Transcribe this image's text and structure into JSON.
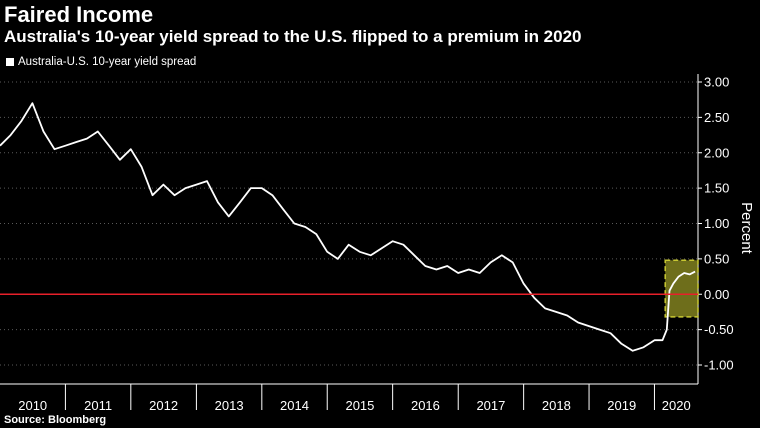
{
  "title": "Faired Income",
  "subtitle": "Australia's 10-year yield spread to the U.S. flipped to a premium in 2020",
  "source": "Source: Bloomberg",
  "colors": {
    "background": "#000000",
    "series": "#ffffff",
    "zero_line": "#e8202a",
    "highlight": "#c8c832"
  },
  "chart_data": {
    "type": "line",
    "title": "Faired Income",
    "subtitle": "Australia's 10-year yield spread to the U.S. flipped to a premium in 2020",
    "ylabel": "Percent",
    "xlabel": "",
    "ylim": [
      -1.15,
      3.12
    ],
    "x_range": [
      "2010-01-01",
      "2020-08-31"
    ],
    "x_tick_labels": [
      "2010",
      "2011",
      "2012",
      "2013",
      "2014",
      "2015",
      "2016",
      "2017",
      "2018",
      "2019",
      "2020"
    ],
    "y_ticks": [
      3.0,
      2.5,
      2.0,
      1.5,
      1.0,
      0.5,
      0.0,
      -0.5,
      -1.0
    ],
    "y_tick_labels": [
      "3.00",
      "2.50",
      "2.00",
      "1.50",
      "1.00",
      "0.50",
      "0.00",
      "-0.50",
      "-1.00"
    ],
    "y_axis_side": "right",
    "grid": "horizontal dotted",
    "legend_placement": "top-left",
    "reference_line": {
      "y": 0.0,
      "color": "#e8202a"
    },
    "highlight": {
      "x_start": "2020-03-01",
      "x_end": "2020-08-31",
      "y_start": -0.32,
      "y_end": 0.48
    },
    "series": [
      {
        "name": "Australia-U.S. 10-year yield spread",
        "color": "#ffffff",
        "x": [
          "2010-01-01",
          "2010-03-01",
          "2010-05-01",
          "2010-07-01",
          "2010-09-01",
          "2010-11-01",
          "2011-01-01",
          "2011-03-01",
          "2011-05-01",
          "2011-07-01",
          "2011-09-01",
          "2011-11-01",
          "2012-01-01",
          "2012-03-01",
          "2012-05-01",
          "2012-07-01",
          "2012-09-01",
          "2012-11-01",
          "2013-01-01",
          "2013-03-01",
          "2013-05-01",
          "2013-07-01",
          "2013-09-01",
          "2013-11-01",
          "2014-01-01",
          "2014-03-01",
          "2014-05-01",
          "2014-07-01",
          "2014-09-01",
          "2014-11-01",
          "2015-01-01",
          "2015-03-01",
          "2015-05-01",
          "2015-07-01",
          "2015-09-01",
          "2015-11-01",
          "2016-01-01",
          "2016-03-01",
          "2016-05-01",
          "2016-07-01",
          "2016-09-01",
          "2016-11-01",
          "2017-01-01",
          "2017-03-01",
          "2017-05-01",
          "2017-07-01",
          "2017-09-01",
          "2017-11-01",
          "2018-01-01",
          "2018-03-01",
          "2018-05-01",
          "2018-07-01",
          "2018-09-01",
          "2018-11-01",
          "2019-01-01",
          "2019-03-01",
          "2019-05-01",
          "2019-07-01",
          "2019-09-01",
          "2019-11-01",
          "2020-01-01",
          "2020-02-15",
          "2020-03-10",
          "2020-03-25",
          "2020-04-15",
          "2020-05-15",
          "2020-06-15",
          "2020-07-15",
          "2020-08-15"
        ],
        "values": [
          2.1,
          2.25,
          2.45,
          2.7,
          2.3,
          2.05,
          2.1,
          2.15,
          2.2,
          2.3,
          2.1,
          1.9,
          2.05,
          1.8,
          1.4,
          1.55,
          1.4,
          1.5,
          1.55,
          1.6,
          1.3,
          1.1,
          1.3,
          1.5,
          1.5,
          1.4,
          1.2,
          1.0,
          0.95,
          0.85,
          0.6,
          0.5,
          0.7,
          0.6,
          0.55,
          0.65,
          0.75,
          0.7,
          0.55,
          0.4,
          0.35,
          0.4,
          0.3,
          0.35,
          0.3,
          0.45,
          0.55,
          0.45,
          0.15,
          -0.05,
          -0.2,
          -0.25,
          -0.3,
          -0.4,
          -0.45,
          -0.5,
          -0.55,
          -0.7,
          -0.8,
          -0.75,
          -0.65,
          -0.65,
          -0.5,
          0.05,
          0.15,
          0.25,
          0.3,
          0.28,
          0.32
        ]
      }
    ]
  }
}
